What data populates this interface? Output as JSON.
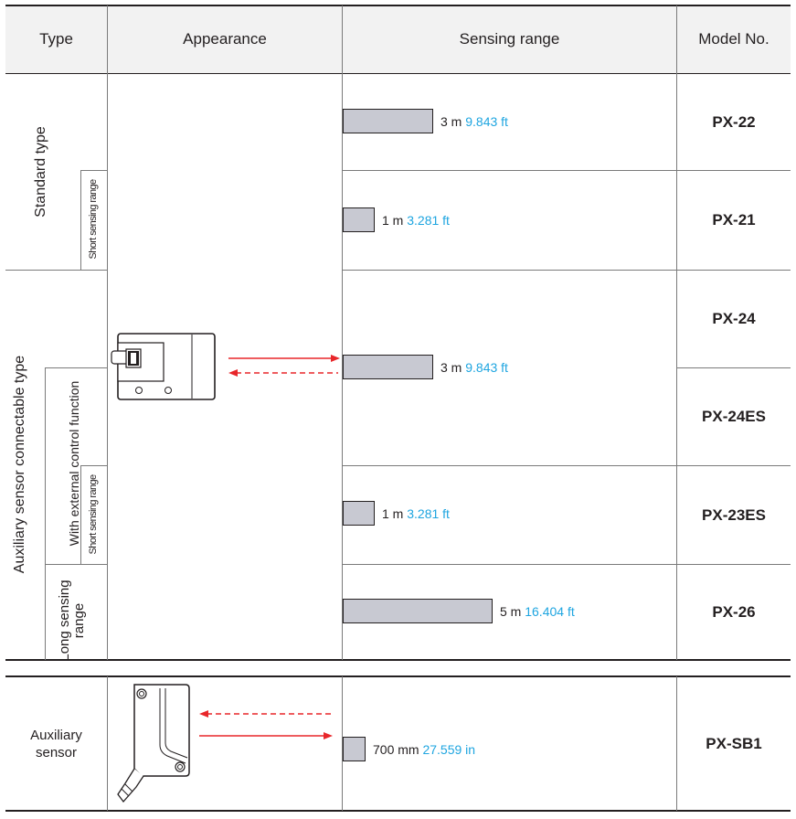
{
  "headers": {
    "type": "Type",
    "appearance": "Appearance",
    "range": "Sensing range",
    "model": "Model No."
  },
  "type_labels": {
    "standard": "Standard type",
    "short_range_1": "Short sensing range",
    "auxiliary_connectable": "Auxiliary sensor connectable type",
    "external_control": "With external control function",
    "short_range_2": "Short sensing range",
    "long_range": "Long sensing range",
    "auxiliary_sensor_line1": "Auxiliary",
    "auxiliary_sensor_line2": "sensor"
  },
  "rows": [
    {
      "metric": "3 m",
      "imperial": "9.843 ft",
      "model": "PX-22"
    },
    {
      "metric": "1 m",
      "imperial": "3.281 ft",
      "model": "PX-21"
    },
    {
      "metric": "3 m",
      "imperial": "9.843 ft",
      "model": "PX-24"
    },
    {
      "model": "PX-24ES"
    },
    {
      "metric": "1 m",
      "imperial": "3.281 ft",
      "model": "PX-23ES"
    },
    {
      "metric": "5 m",
      "imperial": "16.404 ft",
      "model": "PX-26"
    },
    {
      "metric": "700 mm",
      "imperial": "27.559 in",
      "model": "PX-SB1"
    }
  ],
  "colors": {
    "bar_fill": "#c8c9d2",
    "imperial_text": "#1ea5e0",
    "beam": "#e8262a",
    "header_bg": "#f2f2f2"
  },
  "icons": [
    "sensor-main-icon",
    "auxiliary-sensor-icon",
    "beam-emit-arrow-icon",
    "beam-return-arrow-icon"
  ]
}
